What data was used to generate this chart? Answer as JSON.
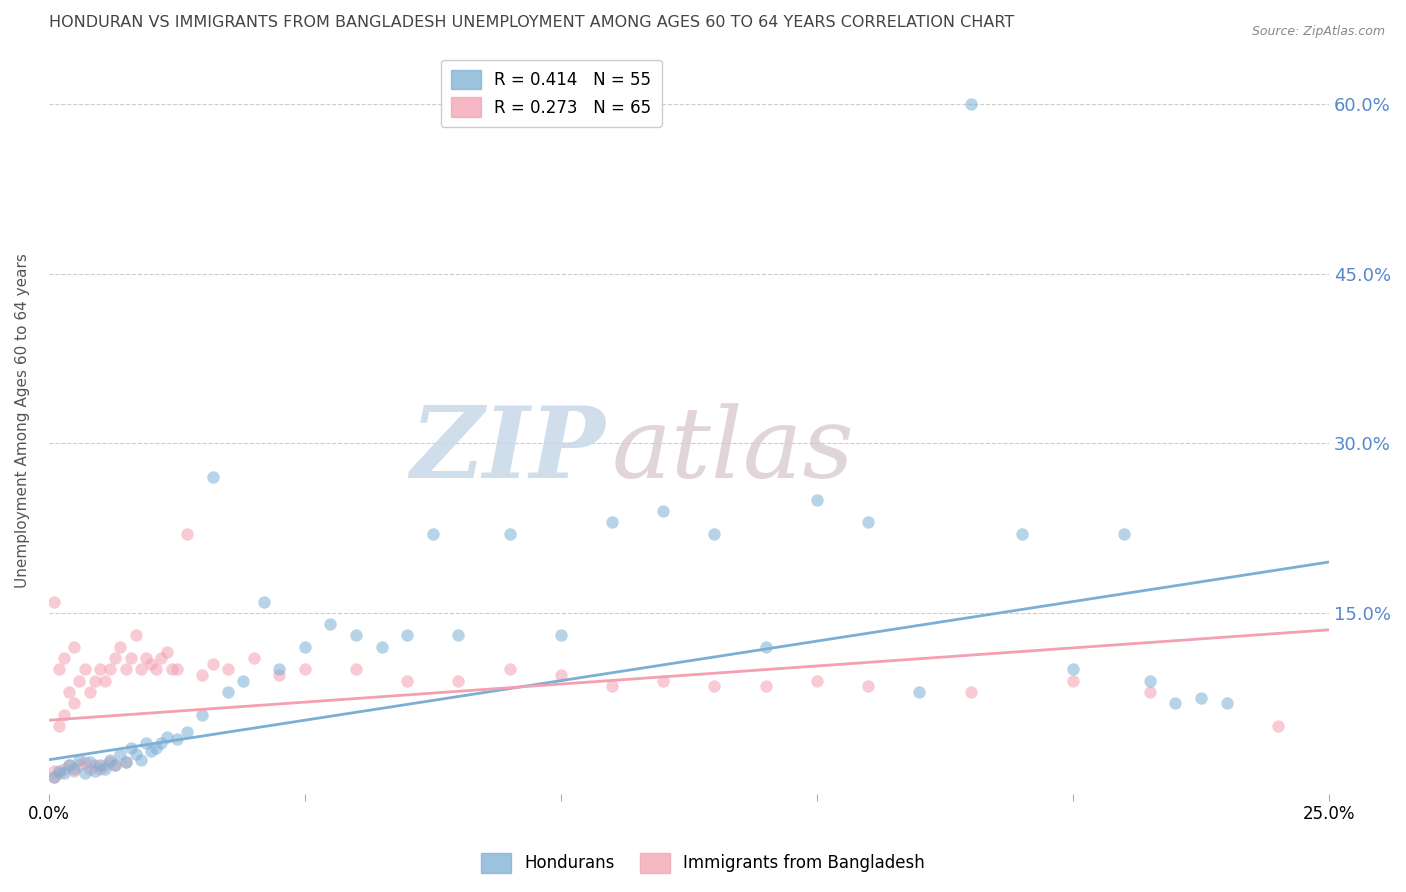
{
  "title": "HONDURAN VS IMMIGRANTS FROM BANGLADESH UNEMPLOYMENT AMONG AGES 60 TO 64 YEARS CORRELATION CHART",
  "source": "Source: ZipAtlas.com",
  "ylabel": "Unemployment Among Ages 60 to 64 years",
  "ytick_values": [
    0.15,
    0.3,
    0.45,
    0.6
  ],
  "ytick_labels": [
    "15.0%",
    "30.0%",
    "45.0%",
    "60.0%"
  ],
  "xlim": [
    0.0,
    0.25
  ],
  "ylim": [
    -0.01,
    0.65
  ],
  "blue_color": "#7BAFD4",
  "pink_color": "#F4A0B0",
  "legend_blue_R": "R = 0.414",
  "legend_blue_N": "N = 55",
  "legend_pink_R": "R = 0.273",
  "legend_pink_N": "N = 65",
  "legend_label_blue": "Hondurans",
  "legend_label_pink": "Immigrants from Bangladesh",
  "blue_scatter_x": [
    0.001,
    0.002,
    0.003,
    0.004,
    0.005,
    0.006,
    0.007,
    0.008,
    0.009,
    0.01,
    0.011,
    0.012,
    0.013,
    0.014,
    0.015,
    0.016,
    0.017,
    0.018,
    0.019,
    0.02,
    0.021,
    0.022,
    0.023,
    0.025,
    0.027,
    0.03,
    0.032,
    0.035,
    0.038,
    0.042,
    0.045,
    0.05,
    0.055,
    0.06,
    0.065,
    0.07,
    0.075,
    0.08,
    0.09,
    0.1,
    0.11,
    0.12,
    0.13,
    0.14,
    0.15,
    0.16,
    0.17,
    0.18,
    0.19,
    0.2,
    0.21,
    0.215,
    0.22,
    0.225,
    0.23
  ],
  "blue_scatter_y": [
    0.005,
    0.01,
    0.008,
    0.015,
    0.012,
    0.02,
    0.008,
    0.018,
    0.01,
    0.015,
    0.012,
    0.02,
    0.015,
    0.025,
    0.018,
    0.03,
    0.025,
    0.02,
    0.035,
    0.028,
    0.03,
    0.035,
    0.04,
    0.038,
    0.045,
    0.06,
    0.27,
    0.08,
    0.09,
    0.16,
    0.1,
    0.12,
    0.14,
    0.13,
    0.12,
    0.13,
    0.22,
    0.13,
    0.22,
    0.13,
    0.23,
    0.24,
    0.22,
    0.12,
    0.25,
    0.23,
    0.08,
    0.6,
    0.22,
    0.1,
    0.22,
    0.09,
    0.07,
    0.075,
    0.07
  ],
  "pink_scatter_x": [
    0.001,
    0.001,
    0.001,
    0.002,
    0.002,
    0.002,
    0.003,
    0.003,
    0.003,
    0.004,
    0.004,
    0.005,
    0.005,
    0.005,
    0.006,
    0.006,
    0.007,
    0.007,
    0.008,
    0.008,
    0.009,
    0.009,
    0.01,
    0.01,
    0.011,
    0.011,
    0.012,
    0.012,
    0.013,
    0.013,
    0.014,
    0.015,
    0.015,
    0.016,
    0.017,
    0.018,
    0.019,
    0.02,
    0.021,
    0.022,
    0.023,
    0.024,
    0.025,
    0.027,
    0.03,
    0.032,
    0.035,
    0.04,
    0.045,
    0.05,
    0.06,
    0.07,
    0.08,
    0.09,
    0.1,
    0.11,
    0.12,
    0.13,
    0.14,
    0.15,
    0.16,
    0.18,
    0.2,
    0.215,
    0.24
  ],
  "pink_scatter_y": [
    0.005,
    0.01,
    0.16,
    0.008,
    0.05,
    0.1,
    0.012,
    0.06,
    0.11,
    0.015,
    0.08,
    0.01,
    0.07,
    0.12,
    0.015,
    0.09,
    0.018,
    0.1,
    0.012,
    0.08,
    0.015,
    0.09,
    0.012,
    0.1,
    0.015,
    0.09,
    0.018,
    0.1,
    0.015,
    0.11,
    0.12,
    0.018,
    0.1,
    0.11,
    0.13,
    0.1,
    0.11,
    0.105,
    0.1,
    0.11,
    0.115,
    0.1,
    0.1,
    0.22,
    0.095,
    0.105,
    0.1,
    0.11,
    0.095,
    0.1,
    0.1,
    0.09,
    0.09,
    0.1,
    0.095,
    0.085,
    0.09,
    0.085,
    0.085,
    0.09,
    0.085,
    0.08,
    0.09,
    0.08,
    0.05
  ],
  "watermark_zip": "ZIP",
  "watermark_atlas": "atlas",
  "background_color": "#FFFFFF",
  "grid_color": "#CCCCCC",
  "title_color": "#444444",
  "right_tick_color": "#5588CC",
  "marker_size": 80,
  "line_width": 2.0,
  "blue_line_x0": 0.0,
  "blue_line_y0": 0.02,
  "blue_line_x1": 0.25,
  "blue_line_y1": 0.195,
  "pink_line_x0": 0.0,
  "pink_line_y0": 0.055,
  "pink_line_x1": 0.25,
  "pink_line_y1": 0.135
}
